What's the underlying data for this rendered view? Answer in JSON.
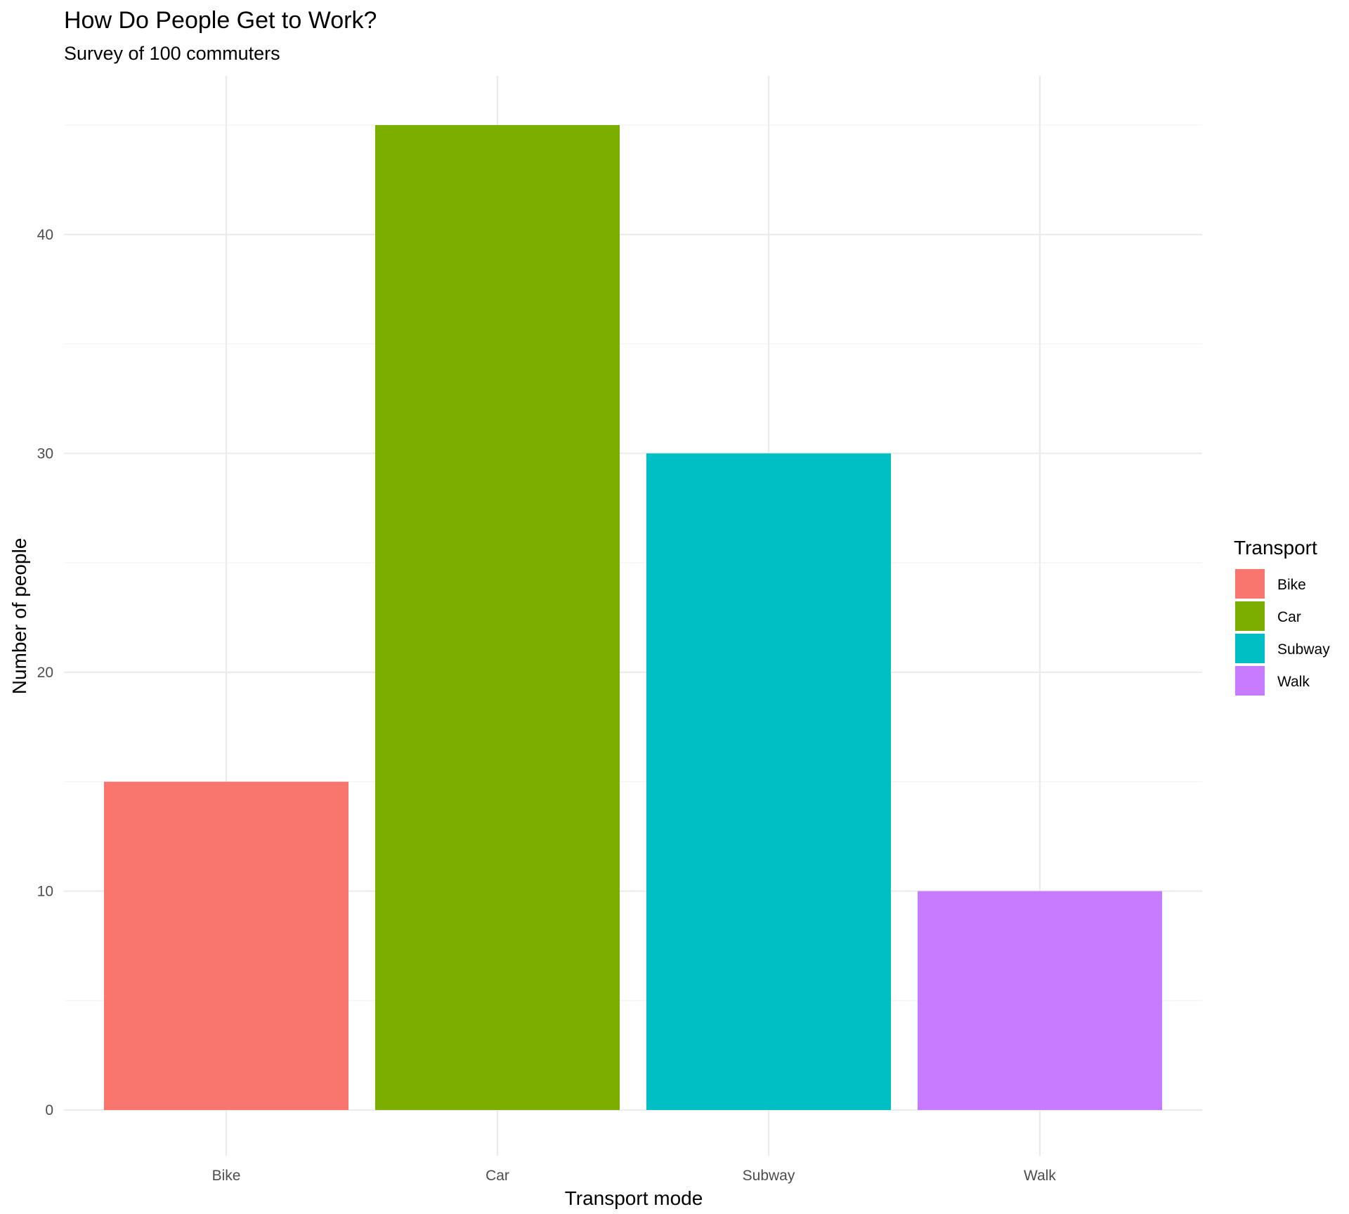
{
  "chart_data": {
    "type": "bar",
    "title": "How Do People Get to Work?",
    "subtitle": "Survey of 100 commuters",
    "xlabel": "Transport mode",
    "ylabel": "Number of people",
    "categories": [
      "Bike",
      "Car",
      "Subway",
      "Walk"
    ],
    "values": [
      15,
      45,
      30,
      10
    ],
    "colors": [
      "#F8766D",
      "#7CAE00",
      "#00BFC4",
      "#C77CFF"
    ],
    "ylim": [
      0,
      47.25
    ],
    "yticks": [
      0,
      10,
      20,
      30,
      40
    ],
    "grid": true,
    "legend": {
      "title": "Transport",
      "position": "right",
      "entries": [
        "Bike",
        "Car",
        "Subway",
        "Walk"
      ]
    }
  }
}
